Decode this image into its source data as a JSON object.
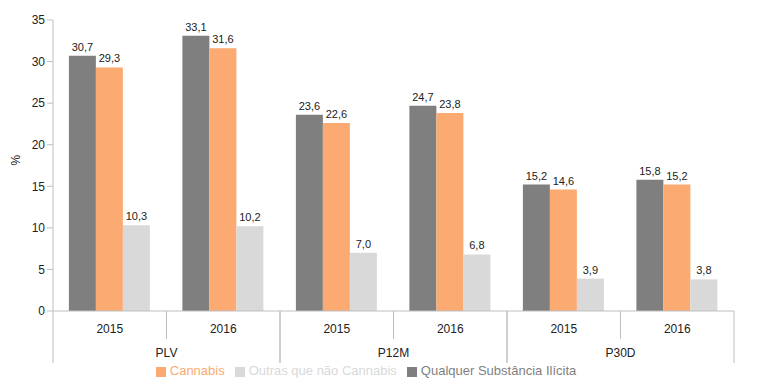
{
  "chart_data": {
    "type": "bar",
    "categories": [
      "2015",
      "2016",
      "2015",
      "2016",
      "2015",
      "2016"
    ],
    "groups": [
      "PLV",
      "P12M",
      "P30D"
    ],
    "ylabel": "%",
    "ylim": [
      0,
      35
    ],
    "yticks": [
      0,
      5,
      10,
      15,
      20,
      25,
      30,
      35
    ],
    "grid": false,
    "legend": "bottom",
    "data_labels": true,
    "series": [
      {
        "name": "Qualquer Substância Ilícita",
        "color": "#7f7f7f",
        "values": [
          30.7,
          33.1,
          23.6,
          24.7,
          15.2,
          15.8
        ],
        "value_labels": [
          "30,7",
          "33,1",
          "23,6",
          "24,7",
          "15,2",
          "15,8"
        ]
      },
      {
        "name": "Cannabis",
        "color": "#fbaa72",
        "values": [
          29.3,
          31.6,
          22.6,
          23.8,
          14.6,
          15.2
        ],
        "value_labels": [
          "29,3",
          "31,6",
          "22,6",
          "23,8",
          "14,6",
          "15,2"
        ]
      },
      {
        "name": "Outras que não Cannabis",
        "color": "#d9d9d9",
        "values": [
          10.3,
          10.2,
          7.0,
          6.8,
          3.9,
          3.8
        ],
        "value_labels": [
          "10,3",
          "10,2",
          "7,0",
          "6,8",
          "3,9",
          "3,8"
        ]
      }
    ]
  }
}
